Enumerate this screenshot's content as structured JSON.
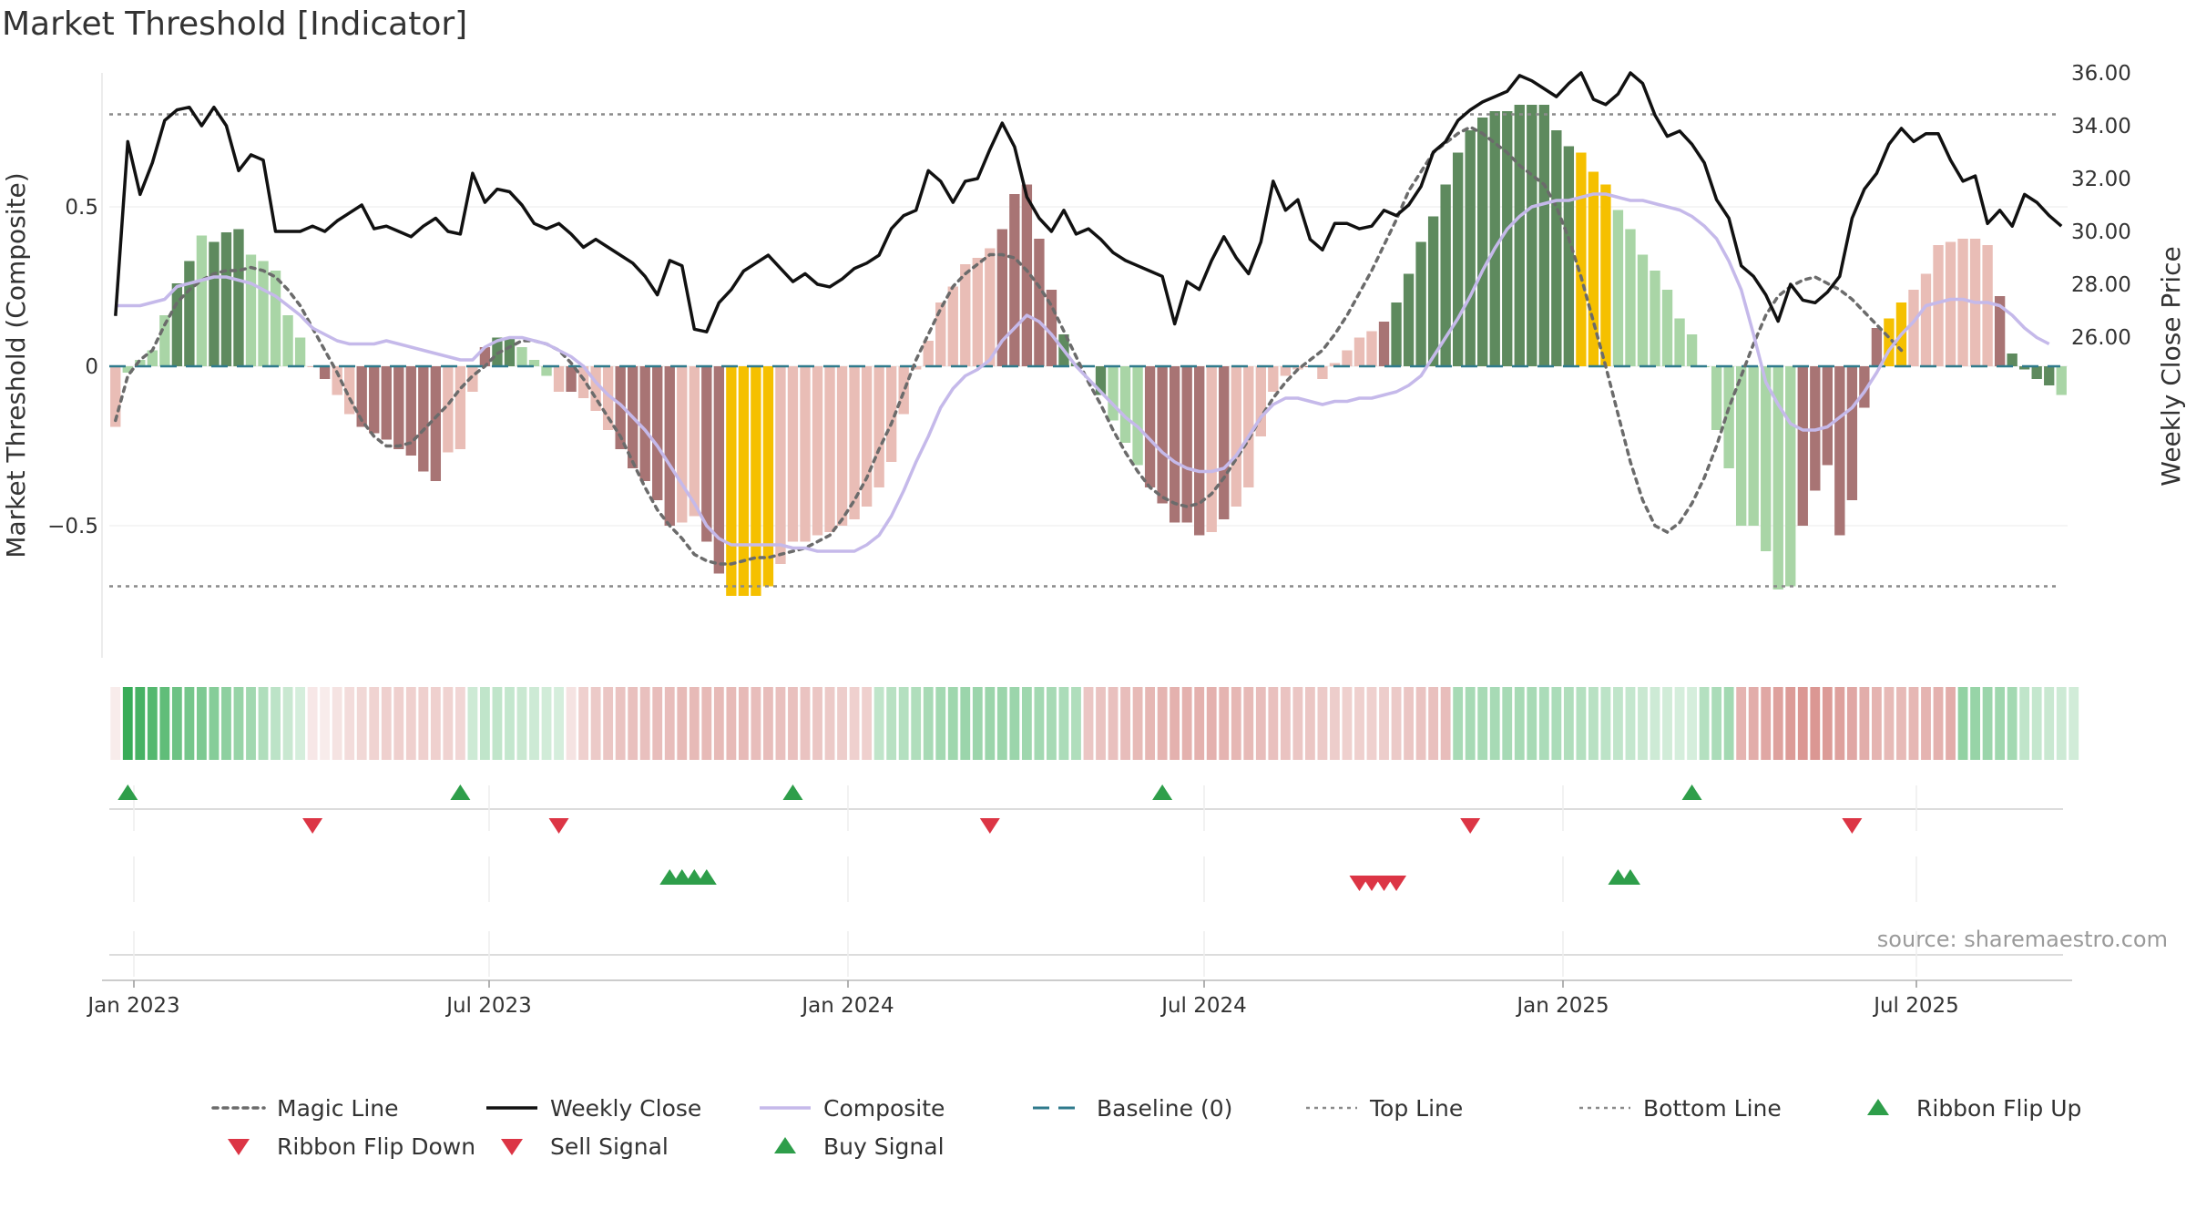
{
  "title": "Market Threshold [Indicator]",
  "source": "source: sharemaestro.com",
  "chart_data": {
    "type": "bar",
    "x_ticks": [
      "Jan 2023",
      "Jul 2023",
      "Jan 2024",
      "Jul 2024",
      "Jan 2025",
      "Jul 2025"
    ],
    "left_axis": {
      "label": "Market Threshold (Composite)",
      "ticks": [
        "0.5",
        "0",
        "−0.5"
      ],
      "tick_values": [
        0.5,
        0,
        -0.5
      ],
      "ylim": [
        -0.91,
        0.92
      ]
    },
    "right_axis": {
      "label": "Weekly Close Price",
      "ticks": [
        "36.00",
        "34.00",
        "32.00",
        "30.00",
        "28.00",
        "26.00"
      ],
      "tick_values": [
        36,
        34,
        32,
        30,
        28,
        26
      ],
      "ylim": [
        25.0,
        36.5
      ]
    },
    "top_line": 0.79,
    "bottom_line": -0.69,
    "colors": {
      "bar_dark_green": "#5e8a5e",
      "bar_light_green": "#a9d5a6",
      "bar_dark_red": "#a87474",
      "bar_light_red": "#e9bdb6",
      "bar_extreme": "#f5c000",
      "weekly_close": "#111111",
      "composite": "#c5b9ea",
      "magic_line": "#6b6b6b",
      "baseline": "#2f7a8c",
      "buy": "#2e9e4a",
      "sell": "#dc3545"
    },
    "composite_bars": [
      -0.19,
      -0.02,
      0.02,
      0.05,
      0.16,
      0.26,
      0.33,
      0.41,
      0.39,
      0.42,
      0.43,
      0.35,
      0.33,
      0.3,
      0.16,
      0.09,
      0,
      -0.04,
      -0.09,
      -0.15,
      -0.19,
      -0.21,
      -0.23,
      -0.26,
      -0.28,
      -0.33,
      -0.36,
      -0.27,
      -0.26,
      -0.08,
      0.06,
      0.09,
      0.09,
      0.06,
      0.02,
      -0.03,
      -0.08,
      -0.08,
      -0.1,
      -0.14,
      -0.2,
      -0.26,
      -0.32,
      -0.36,
      -0.42,
      -0.5,
      -0.49,
      -0.47,
      -0.55,
      -0.65,
      -0.72,
      -0.72,
      -0.72,
      -0.69,
      -0.62,
      -0.55,
      -0.55,
      -0.53,
      -0.52,
      -0.5,
      -0.48,
      -0.44,
      -0.38,
      -0.3,
      -0.15,
      -0.01,
      0.08,
      0.2,
      0.25,
      0.32,
      0.34,
      0.37,
      0.43,
      0.54,
      0.57,
      0.4,
      0.24,
      0.1,
      0.01,
      0,
      -0.09,
      -0.17,
      -0.24,
      -0.31,
      -0.38,
      -0.43,
      -0.49,
      -0.49,
      -0.53,
      -0.52,
      -0.48,
      -0.44,
      -0.38,
      -0.22,
      -0.08,
      -0.03,
      -0.01,
      0,
      -0.04,
      0.01,
      0.05,
      0.09,
      0.11,
      0.14,
      0.2,
      0.29,
      0.39,
      0.47,
      0.57,
      0.67,
      0.74,
      0.78,
      0.8,
      0.8,
      0.82,
      0.82,
      0.82,
      0.74,
      0.69,
      0.67,
      0.61,
      0.57,
      0.49,
      0.43,
      0.35,
      0.3,
      0.24,
      0.15,
      0.1,
      0,
      -0.2,
      -0.32,
      -0.5,
      -0.5,
      -0.58,
      -0.7,
      -0.69,
      -0.5,
      -0.39,
      -0.31,
      -0.53,
      -0.42,
      -0.13,
      0.12,
      0.15,
      0.2,
      0.24,
      0.29,
      0.38,
      0.39,
      0.4,
      0.4,
      0.38,
      0.22,
      0.04,
      -0.01,
      -0.04,
      -0.06,
      -0.09
    ],
    "bar_classes": "rggggGGgGGGgggggrRrrRRRRRRRrrrRGGgggrRrrrRRRRRrrRRyyyyrrrrrrrrrrrrrrrrrrRRRRRGGgGgggRRRRRrRrrrrrrRrrrrrRGGGGGGGGGGGGGGGyyygggggggggggggggRRRRRRRyyrrrrrrrRGGGGggggggRRRRR",
    "weekly_close": [
      26.8,
      33.4,
      31.4,
      32.6,
      34.2,
      34.6,
      34.7,
      34.0,
      34.7,
      34.0,
      32.3,
      32.9,
      32.7,
      30.0,
      30.0,
      30.0,
      30.2,
      30.0,
      30.4,
      30.7,
      31.0,
      30.1,
      30.2,
      30.0,
      29.8,
      30.2,
      30.5,
      30.0,
      29.9,
      32.2,
      31.1,
      31.6,
      31.5,
      31.0,
      30.3,
      30.1,
      30.3,
      29.9,
      29.4,
      29.7,
      29.4,
      29.1,
      28.8,
      28.3,
      27.6,
      28.9,
      28.7,
      26.3,
      26.2,
      27.3,
      27.8,
      28.5,
      28.8,
      29.1,
      28.6,
      28.1,
      28.4,
      28.0,
      27.9,
      28.2,
      28.6,
      28.8,
      29.1,
      30.1,
      30.6,
      30.8,
      32.3,
      31.9,
      31.1,
      31.9,
      32.0,
      33.1,
      34.1,
      33.2,
      31.3,
      30.5,
      30.0,
      30.8,
      29.9,
      30.1,
      29.7,
      29.2,
      28.9,
      28.7,
      28.5,
      28.3,
      26.5,
      28.1,
      27.8,
      28.9,
      29.8,
      29.0,
      28.4,
      29.6,
      31.9,
      30.8,
      31.2,
      29.7,
      29.3,
      30.3,
      30.3,
      30.1,
      30.2,
      30.8,
      30.6,
      31.0,
      31.7,
      33.0,
      33.4,
      34.2,
      34.6,
      34.9,
      35.1,
      35.3,
      35.9,
      35.7,
      35.4,
      35.1,
      35.6,
      36.0,
      35.0,
      34.8,
      35.2,
      36.0,
      35.6,
      34.4,
      33.6,
      33.8,
      33.3,
      32.6,
      31.2,
      30.5,
      28.7,
      28.3,
      27.6,
      26.6,
      28.0,
      27.4,
      27.3,
      27.7,
      28.3,
      30.5,
      31.6,
      32.2,
      33.3,
      33.9,
      33.4,
      33.7,
      33.7,
      32.7,
      31.9,
      32.1,
      30.3,
      30.8,
      30.2,
      31.4,
      31.1,
      30.6,
      30.2
    ],
    "composite_line": [
      0.19,
      0.19,
      0.19,
      0.2,
      0.21,
      0.25,
      0.26,
      0.27,
      0.28,
      0.28,
      0.27,
      0.26,
      0.24,
      0.22,
      0.19,
      0.16,
      0.12,
      0.1,
      0.08,
      0.07,
      0.07,
      0.07,
      0.08,
      0.07,
      0.06,
      0.05,
      0.04,
      0.03,
      0.02,
      0.02,
      0.06,
      0.08,
      0.09,
      0.09,
      0.08,
      0.07,
      0.05,
      0.03,
      0.0,
      -0.05,
      -0.09,
      -0.12,
      -0.16,
      -0.2,
      -0.25,
      -0.31,
      -0.37,
      -0.43,
      -0.5,
      -0.54,
      -0.56,
      -0.56,
      -0.56,
      -0.56,
      -0.56,
      -0.57,
      -0.57,
      -0.58,
      -0.58,
      -0.58,
      -0.58,
      -0.56,
      -0.53,
      -0.47,
      -0.39,
      -0.3,
      -0.22,
      -0.13,
      -0.07,
      -0.03,
      -0.01,
      0.02,
      0.08,
      0.12,
      0.16,
      0.14,
      0.1,
      0.05,
      0.0,
      -0.04,
      -0.08,
      -0.12,
      -0.16,
      -0.19,
      -0.23,
      -0.27,
      -0.3,
      -0.32,
      -0.33,
      -0.33,
      -0.32,
      -0.28,
      -0.22,
      -0.16,
      -0.12,
      -0.1,
      -0.1,
      -0.11,
      -0.12,
      -0.11,
      -0.11,
      -0.1,
      -0.1,
      -0.09,
      -0.08,
      -0.06,
      -0.03,
      0.03,
      0.09,
      0.15,
      0.22,
      0.3,
      0.37,
      0.43,
      0.47,
      0.5,
      0.51,
      0.52,
      0.52,
      0.53,
      0.54,
      0.54,
      0.53,
      0.52,
      0.52,
      0.51,
      0.5,
      0.49,
      0.47,
      0.44,
      0.4,
      0.33,
      0.24,
      0.1,
      -0.05,
      -0.12,
      -0.18,
      -0.2,
      -0.2,
      -0.19,
      -0.16,
      -0.13,
      -0.08,
      -0.02,
      0.05,
      0.1,
      0.14,
      0.19,
      0.2,
      0.21,
      0.21,
      0.2,
      0.2,
      0.19,
      0.16,
      0.12,
      0.09,
      0.07
    ],
    "magic_line": [
      -0.17,
      -0.03,
      0.02,
      0.05,
      0.13,
      0.2,
      0.24,
      0.27,
      0.29,
      0.3,
      0.3,
      0.31,
      0.3,
      0.28,
      0.24,
      0.19,
      0.12,
      0.05,
      -0.02,
      -0.1,
      -0.17,
      -0.22,
      -0.25,
      -0.25,
      -0.24,
      -0.2,
      -0.16,
      -0.12,
      -0.07,
      -0.03,
      0.0,
      0.04,
      0.06,
      0.08,
      0.08,
      0.07,
      0.05,
      0.01,
      -0.04,
      -0.1,
      -0.16,
      -0.22,
      -0.3,
      -0.38,
      -0.45,
      -0.5,
      -0.54,
      -0.59,
      -0.61,
      -0.62,
      -0.62,
      -0.61,
      -0.6,
      -0.6,
      -0.59,
      -0.58,
      -0.57,
      -0.55,
      -0.53,
      -0.48,
      -0.42,
      -0.35,
      -0.26,
      -0.18,
      -0.08,
      0.02,
      0.1,
      0.18,
      0.25,
      0.29,
      0.32,
      0.35,
      0.35,
      0.34,
      0.3,
      0.25,
      0.19,
      0.11,
      0.03,
      -0.05,
      -0.12,
      -0.2,
      -0.27,
      -0.33,
      -0.38,
      -0.41,
      -0.43,
      -0.44,
      -0.43,
      -0.4,
      -0.35,
      -0.29,
      -0.23,
      -0.16,
      -0.1,
      -0.05,
      -0.01,
      0.02,
      0.05,
      0.1,
      0.16,
      0.23,
      0.3,
      0.38,
      0.46,
      0.55,
      0.61,
      0.67,
      0.7,
      0.73,
      0.75,
      0.73,
      0.7,
      0.67,
      0.63,
      0.6,
      0.57,
      0.5,
      0.4,
      0.28,
      0.14,
      0.0,
      -0.15,
      -0.3,
      -0.42,
      -0.5,
      -0.52,
      -0.49,
      -0.43,
      -0.35,
      -0.25,
      -0.13,
      -0.03,
      0.07,
      0.16,
      0.22,
      0.25,
      0.27,
      0.28,
      0.26,
      0.24,
      0.21,
      0.17,
      0.13,
      0.09,
      0.05
    ],
    "ribbon_shades": [
      0.12,
      0.95,
      0.88,
      0.82,
      0.76,
      0.7,
      0.66,
      0.62,
      0.58,
      0.54,
      0.5,
      0.45,
      0.38,
      0.32,
      0.26,
      0.2,
      0.15,
      0.12,
      0.18,
      0.22,
      0.25,
      0.28,
      0.3,
      0.3,
      0.3,
      0.3,
      0.3,
      0.28,
      0.26,
      0.24,
      0.3,
      0.3,
      0.28,
      0.26,
      0.24,
      0.22,
      0.2,
      0.18,
      0.3,
      0.34,
      0.36,
      0.38,
      0.4,
      0.4,
      0.42,
      0.42,
      0.44,
      0.44,
      0.44,
      0.44,
      0.44,
      0.44,
      0.42,
      0.42,
      0.4,
      0.4,
      0.38,
      0.36,
      0.34,
      0.32,
      0.3,
      0.3,
      0.3,
      0.34,
      0.36,
      0.38,
      0.42,
      0.44,
      0.46,
      0.48,
      0.48,
      0.48,
      0.48,
      0.48,
      0.46,
      0.44,
      0.42,
      0.4,
      0.38,
      0.36,
      0.38,
      0.4,
      0.42,
      0.44,
      0.46,
      0.48,
      0.5,
      0.5,
      0.5,
      0.5,
      0.48,
      0.46,
      0.44,
      0.42,
      0.4,
      0.38,
      0.36,
      0.36,
      0.34,
      0.32,
      0.3,
      0.3,
      0.3,
      0.32,
      0.34,
      0.36,
      0.38,
      0.4,
      0.42,
      0.42,
      0.42,
      0.42,
      0.42,
      0.42,
      0.42,
      0.42,
      0.4,
      0.4,
      0.38,
      0.36,
      0.34,
      0.32,
      0.3,
      0.28,
      0.26,
      0.24,
      0.22,
      0.2,
      0.2,
      0.36,
      0.4,
      0.44,
      0.48,
      0.52,
      0.56,
      0.6,
      0.64,
      0.66,
      0.66,
      0.64,
      0.6,
      0.56,
      0.52,
      0.48,
      0.44,
      0.44,
      0.46,
      0.48,
      0.5,
      0.52,
      0.52,
      0.5,
      0.48,
      0.46,
      0.44,
      0.3,
      0.28,
      0.26,
      0.24,
      0.22
    ],
    "ribbon_classes": "rgggggggggggggggrrrrrrrrrrrrrggggggggrrrrrrrrrrrrrrrrrrrrrrrrrgggggggggggggggggrrrrrrrrrrrrrrrrrrrrrrrrrrrrrrgggggggggggggggggggggggrrrrrrrrrrrrrrrrrrgggggggggggggrrr",
    "ribbon_flip_up": [
      1,
      28,
      55,
      85,
      128
    ],
    "ribbon_flip_down": [
      16,
      36,
      71,
      110,
      141
    ],
    "buy_signal": [
      45,
      46,
      47,
      48,
      122,
      123
    ],
    "sell_signal": [
      101,
      102,
      103,
      104
    ]
  },
  "legend": [
    {
      "label": "Magic Line",
      "icon": "dotted-line"
    },
    {
      "label": "Weekly Close",
      "icon": "solid-line"
    },
    {
      "label": "Composite",
      "icon": "lavender-line"
    },
    {
      "label": "Baseline (0)",
      "icon": "dashed-line"
    },
    {
      "label": "Top Line",
      "icon": "thin-dotted-line"
    },
    {
      "label": "Bottom Line",
      "icon": "thin-dotted-line"
    },
    {
      "label": "Ribbon Flip Up",
      "icon": "green-triangle-up"
    },
    {
      "label": "Ribbon Flip Down",
      "icon": "red-triangle-down"
    },
    {
      "label": "Sell Signal",
      "icon": "red-triangle-down"
    },
    {
      "label": "Buy Signal",
      "icon": "green-triangle-up"
    }
  ]
}
